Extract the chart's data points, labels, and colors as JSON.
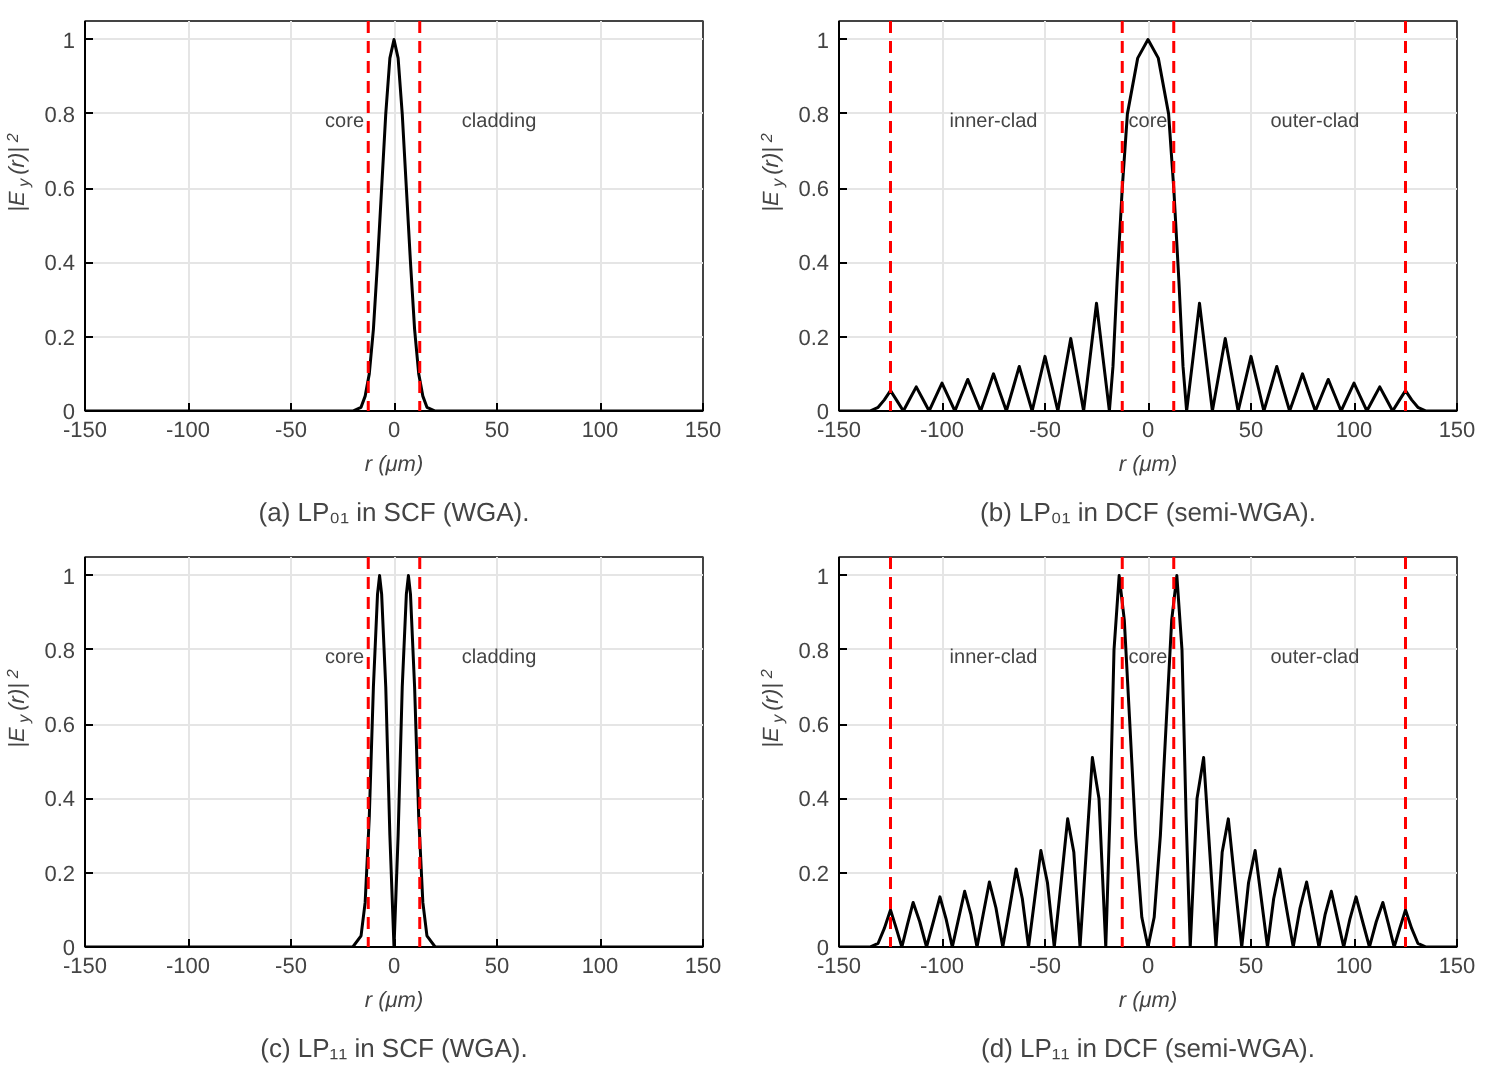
{
  "chart_data": [
    {
      "type": "line",
      "title": "(a) LP₀₁ in SCF (WGA).",
      "xlabel": "r (μm)",
      "ylabel": "|E$_{y}$(r)|$^{2}$",
      "xlim": [
        -150,
        150
      ],
      "ylim": [
        0,
        1.05
      ],
      "xticks": [
        -150,
        -100,
        -50,
        0,
        50,
        100,
        150
      ],
      "yticks": [
        0,
        0.2,
        0.4,
        0.6,
        0.8,
        1
      ],
      "grid": true,
      "line_style": "solid",
      "series": [
        {
          "color": "#000000",
          "x": [
            -150,
            -20,
            -16,
            -14,
            -12,
            -10,
            -8,
            -6,
            -4,
            -2,
            0,
            2,
            4,
            6,
            8,
            10,
            12,
            14,
            16,
            20,
            150
          ],
          "values": [
            0,
            0,
            0.01,
            0.04,
            0.1,
            0.22,
            0.4,
            0.6,
            0.8,
            0.95,
            1,
            0.95,
            0.8,
            0.6,
            0.4,
            0.22,
            0.1,
            0.04,
            0.01,
            0,
            0
          ]
        }
      ],
      "ref_lines": [
        {
          "axis": "x",
          "value": -12.5,
          "color": "#ff0000",
          "line_style": "dashed"
        },
        {
          "axis": "x",
          "value": 12.5,
          "color": "#ff0000",
          "line_style": "dashed"
        }
      ],
      "annotations": [
        "core",
        "cladding"
      ]
    },
    {
      "type": "line",
      "title": "(b) LP₀₁ in DCF (semi-WGA).",
      "xlabel": "r (μm)",
      "ylabel": "|E$_{y}$(r)|$^{2}$",
      "xlim": [
        -150,
        150
      ],
      "ylim": [
        0,
        1.05
      ],
      "xticks": [
        -150,
        -100,
        -50,
        0,
        50,
        100,
        150
      ],
      "yticks": [
        0,
        0.2,
        0.4,
        0.6,
        0.8,
        1
      ],
      "grid": true,
      "line_style": "solid",
      "series": [
        {
          "color": "#000000",
          "x": [
            -150,
            -135,
            -131,
            -128,
            -125,
            -121.9,
            -118.75,
            -115.6,
            -112.5,
            -109.4,
            -106.25,
            -103.1,
            -100,
            -96.9,
            -93.75,
            -90.6,
            -87.5,
            -84.4,
            -81.25,
            -78.1,
            -75,
            -71.9,
            -68.75,
            -65.6,
            -62.5,
            -59.4,
            -56.25,
            -53.1,
            -50,
            -46.9,
            -43.75,
            -40.6,
            -37.5,
            -34.4,
            -31.25,
            -28.1,
            -25,
            -21.9,
            -18.75,
            -17,
            -15,
            -12.5,
            -10,
            -5,
            0,
            5,
            10,
            12.5,
            15,
            17,
            18.75,
            21.9,
            25,
            28.1,
            31.25,
            34.4,
            37.5,
            40.6,
            43.75,
            46.9,
            50,
            53.1,
            56.25,
            59.4,
            62.5,
            65.6,
            68.75,
            71.9,
            75,
            78.1,
            81.25,
            84.4,
            87.5,
            90.6,
            93.75,
            96.9,
            100,
            103.1,
            106.25,
            109.4,
            112.5,
            115.6,
            118.75,
            121.9,
            125,
            128,
            131,
            135,
            150
          ],
          "values": [
            0,
            0,
            0.01,
            0.03,
            0.055,
            0.028,
            0,
            0.033,
            0.065,
            0.033,
            0,
            0.038,
            0.075,
            0.038,
            0,
            0.043,
            0.085,
            0.043,
            0,
            0.05,
            0.1,
            0.05,
            0,
            0.06,
            0.12,
            0.06,
            0,
            0.074,
            0.147,
            0.074,
            0,
            0.098,
            0.195,
            0.098,
            0,
            0.145,
            0.29,
            0.145,
            0,
            0.12,
            0.35,
            0.6,
            0.8,
            0.95,
            1,
            0.95,
            0.8,
            0.6,
            0.35,
            0.12,
            0,
            0.145,
            0.29,
            0.145,
            0,
            0.098,
            0.195,
            0.098,
            0,
            0.074,
            0.147,
            0.074,
            0,
            0.06,
            0.12,
            0.06,
            0,
            0.05,
            0.1,
            0.05,
            0,
            0.043,
            0.085,
            0.043,
            0,
            0.038,
            0.075,
            0.038,
            0,
            0.033,
            0.065,
            0.033,
            0,
            0.028,
            0.055,
            0.03,
            0.01,
            0,
            0
          ]
        }
      ],
      "ref_lines": [
        {
          "axis": "x",
          "value": -125,
          "color": "#ff0000",
          "line_style": "dashed"
        },
        {
          "axis": "x",
          "value": -12.5,
          "color": "#ff0000",
          "line_style": "dashed"
        },
        {
          "axis": "x",
          "value": 12.5,
          "color": "#ff0000",
          "line_style": "dashed"
        },
        {
          "axis": "x",
          "value": 125,
          "color": "#ff0000",
          "line_style": "dashed"
        }
      ],
      "annotations": [
        "inner-clad",
        "core",
        "outer-clad"
      ]
    },
    {
      "type": "line",
      "title": "(c) LP₁₁ in SCF (WGA).",
      "xlabel": "r (μm)",
      "ylabel": "|E$_{y}$(r)|$^{2}$",
      "xlim": [
        -150,
        150
      ],
      "ylim": [
        0,
        1.05
      ],
      "xticks": [
        -150,
        -100,
        -50,
        0,
        50,
        100,
        150
      ],
      "yticks": [
        0,
        0.2,
        0.4,
        0.6,
        0.8,
        1
      ],
      "grid": true,
      "line_style": "solid",
      "series": [
        {
          "color": "#000000",
          "x": [
            -150,
            -20,
            -16,
            -14,
            -12,
            -10,
            -8,
            -7,
            -6,
            -4,
            -2,
            0,
            2,
            4,
            6,
            7,
            8,
            10,
            12,
            14,
            16,
            20,
            150
          ],
          "values": [
            0,
            0,
            0.03,
            0.12,
            0.35,
            0.7,
            0.95,
            1,
            0.95,
            0.7,
            0.3,
            0,
            0.3,
            0.7,
            0.95,
            1,
            0.95,
            0.7,
            0.35,
            0.12,
            0.03,
            0,
            0
          ]
        }
      ],
      "ref_lines": [
        {
          "axis": "x",
          "value": -12.5,
          "color": "#ff0000",
          "line_style": "dashed"
        },
        {
          "axis": "x",
          "value": 12.5,
          "color": "#ff0000",
          "line_style": "dashed"
        }
      ],
      "annotations": [
        "core",
        "cladding"
      ]
    },
    {
      "type": "line",
      "title": "(d) LP₁₁ in DCF (semi-WGA).",
      "xlabel": "r (μm)",
      "ylabel": "|E$_{y}$(r)|$^{2}$",
      "xlim": [
        -150,
        150
      ],
      "ylim": [
        0,
        1.05
      ],
      "xticks": [
        -150,
        -100,
        -50,
        0,
        50,
        100,
        150
      ],
      "yticks": [
        0,
        0.2,
        0.4,
        0.6,
        0.8,
        1
      ],
      "grid": true,
      "line_style": "solid",
      "series": [
        {
          "color": "#000000",
          "x": [
            -150,
            -135,
            -131,
            -128,
            -125,
            -122.2,
            -119.5,
            -116.8,
            -114,
            -110.8,
            -107.5,
            -104.2,
            -101,
            -98,
            -95,
            -92,
            -89,
            -86,
            -83,
            -80,
            -77,
            -73.8,
            -70.5,
            -67.2,
            -64,
            -61,
            -58,
            -55,
            -52,
            -48.8,
            -45.5,
            -42.2,
            -39,
            -36,
            -33,
            -30,
            -27,
            -23.8,
            -20.5,
            -18.5,
            -16.5,
            -14,
            -11.5,
            -9,
            -6,
            -3,
            0,
            3,
            6,
            9,
            11.5,
            14,
            16.5,
            18.5,
            20.5,
            23.8,
            27,
            30,
            33,
            36,
            39,
            42.2,
            45.5,
            48.8,
            52,
            55,
            58,
            61,
            64,
            67.2,
            70.5,
            73.8,
            77,
            80,
            83,
            86,
            89,
            92,
            95,
            98,
            101,
            104.2,
            107.5,
            110.8,
            114,
            116.8,
            119.5,
            122.2,
            125,
            128,
            131,
            135,
            150
          ],
          "values": [
            0,
            0,
            0.01,
            0.05,
            0.1,
            0.05,
            0,
            0.06,
            0.12,
            0.068,
            0,
            0.068,
            0.135,
            0.075,
            0,
            0.075,
            0.15,
            0.088,
            0,
            0.088,
            0.175,
            0.105,
            0,
            0.105,
            0.21,
            0.13,
            0,
            0.13,
            0.26,
            0.173,
            0,
            0.173,
            0.345,
            0.255,
            0,
            0.255,
            0.51,
            0.4,
            0,
            0.35,
            0.8,
            1,
            0.88,
            0.62,
            0.3,
            0.08,
            0,
            0.08,
            0.3,
            0.62,
            0.88,
            1,
            0.8,
            0.35,
            0,
            0.4,
            0.51,
            0.255,
            0,
            0.255,
            0.345,
            0.173,
            0,
            0.173,
            0.26,
            0.13,
            0,
            0.13,
            0.21,
            0.105,
            0,
            0.105,
            0.175,
            0.088,
            0,
            0.088,
            0.15,
            0.075,
            0,
            0.075,
            0.135,
            0.068,
            0,
            0.068,
            0.12,
            0.06,
            0,
            0.05,
            0.1,
            0.05,
            0.01,
            0,
            0
          ]
        }
      ],
      "ref_lines": [
        {
          "axis": "x",
          "value": -125,
          "color": "#ff0000",
          "line_style": "dashed"
        },
        {
          "axis": "x",
          "value": -12.5,
          "color": "#ff0000",
          "line_style": "dashed"
        },
        {
          "axis": "x",
          "value": 12.5,
          "color": "#ff0000",
          "line_style": "dashed"
        },
        {
          "axis": "x",
          "value": 125,
          "color": "#ff0000",
          "line_style": "dashed"
        }
      ],
      "annotations": [
        "inner-clad",
        "core",
        "outer-clad"
      ]
    }
  ]
}
